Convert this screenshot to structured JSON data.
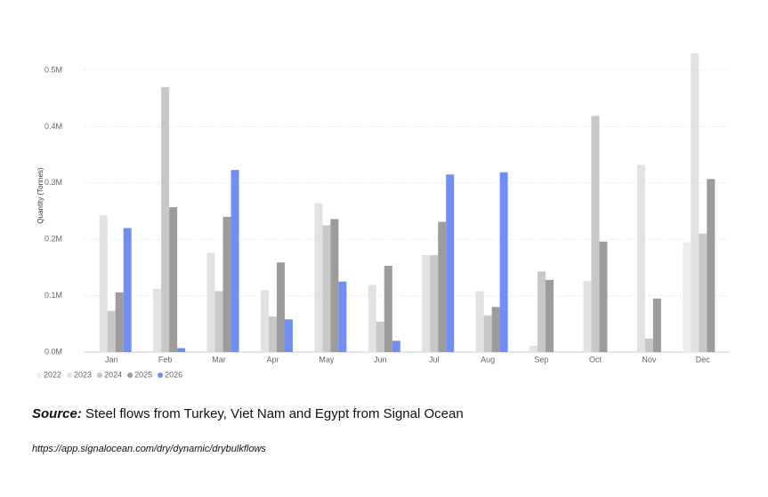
{
  "chart_data": {
    "type": "bar",
    "y_label": "Quantity (Tonnes)",
    "categories": [
      "Jan",
      "Feb",
      "Mar",
      "Apr",
      "May",
      "Jun",
      "Jul",
      "Aug",
      "Sep",
      "Oct",
      "Nov",
      "Dec"
    ],
    "series": [
      {
        "name": "2022",
        "color": "#eeeeee",
        "values": [
          null,
          null,
          null,
          null,
          null,
          null,
          null,
          null,
          null,
          null,
          null,
          195000
        ]
      },
      {
        "name": "2023",
        "color": "#e2e2e2",
        "values": [
          243000,
          112000,
          176000,
          110000,
          264000,
          119000,
          172000,
          108000,
          11000,
          126000,
          332000,
          530000
        ]
      },
      {
        "name": "2024",
        "color": "#c8c8c8",
        "values": [
          73000,
          470000,
          108000,
          63000,
          225000,
          54000,
          172000,
          65000,
          143000,
          419000,
          24000,
          210000
        ]
      },
      {
        "name": "2025",
        "color": "#9c9c9c",
        "values": [
          106000,
          257000,
          240000,
          159000,
          236000,
          153000,
          231000,
          80000,
          128000,
          196000,
          95000,
          307000
        ]
      },
      {
        "name": "2026",
        "color": "#6f8ff7",
        "values": [
          220000,
          7000,
          323000,
          58000,
          125000,
          20000,
          315000,
          319000,
          null,
          null,
          null,
          null
        ]
      }
    ],
    "ylim": [
      0,
      550000
    ],
    "yticks": [
      {
        "value": 0,
        "label": "0.0M"
      },
      {
        "value": 100000,
        "label": "0.1M"
      },
      {
        "value": 200000,
        "label": "0.2M"
      },
      {
        "value": 300000,
        "label": "0.3M"
      },
      {
        "value": 400000,
        "label": "0.4M"
      },
      {
        "value": 500000,
        "label": "0.5M"
      }
    ],
    "grid": true,
    "legend": "bottom-left"
  },
  "source": {
    "label": "Source:",
    "text": "Steel flows from Turkey, Viet Nam and Egypt from Signal Ocean",
    "url": "https://app.signalocean.com/dry/dynamic/drybulkflows"
  }
}
